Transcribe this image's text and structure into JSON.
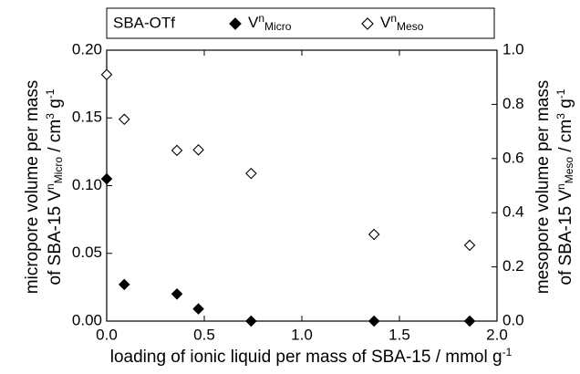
{
  "chart_data": {
    "type": "scatter",
    "legend_title": "SBA-OTf",
    "xlabel": [
      {
        "t": "loading of ionic liquid per mass of SBA-15 / mmol g"
      },
      {
        "t": "-1",
        "pos": "sup"
      }
    ],
    "ylabel": [
      [
        {
          "t": "micropore volume per mass"
        }
      ],
      [
        {
          "t": "of SBA-15  V"
        },
        {
          "t": "n",
          "pos": "sup"
        },
        {
          "t": "Micro",
          "pos": "sub"
        },
        {
          "t": "  / cm"
        },
        {
          "t": "3",
          "pos": "sup"
        },
        {
          "t": " g"
        },
        {
          "t": "-1",
          "pos": "sup"
        }
      ]
    ],
    "y2label": [
      [
        {
          "t": "mesopore volume per mass"
        }
      ],
      [
        {
          "t": "of SBA-15  V"
        },
        {
          "t": "n",
          "pos": "sup"
        },
        {
          "t": "Meso",
          "pos": "sub"
        },
        {
          "t": "  / cm"
        },
        {
          "t": "3",
          "pos": "sup"
        },
        {
          "t": " g"
        },
        {
          "t": "-1",
          "pos": "sup"
        }
      ]
    ],
    "x": [
      0,
      0.09,
      0.36,
      0.47,
      0.74,
      1.37,
      1.86
    ],
    "series": [
      {
        "name": [
          {
            "t": "V"
          },
          {
            "t": "n",
            "pos": "sup"
          },
          {
            "t": "Micro",
            "pos": "sub"
          }
        ],
        "color": "#000000",
        "filled": true,
        "axis": "y",
        "values": [
          0.105,
          0.027,
          0.02,
          0.009,
          0,
          0,
          0
        ]
      },
      {
        "name": [
          {
            "t": "V"
          },
          {
            "t": "n",
            "pos": "sup"
          },
          {
            "t": "Meso",
            "pos": "sub"
          }
        ],
        "color": "#000000",
        "filled": false,
        "axis": "y2",
        "values": [
          0.91,
          0.745,
          0.63,
          0.632,
          0.545,
          0.32,
          0.28
        ]
      }
    ],
    "xlim": [
      0,
      2
    ],
    "xticks": [
      {
        "value": 0,
        "label": "0.0"
      },
      {
        "value": 0.5,
        "label": "0.5"
      },
      {
        "value": 1,
        "label": "1.0"
      },
      {
        "value": 1.5,
        "label": "1.5"
      },
      {
        "value": 2,
        "label": "2.0"
      }
    ],
    "ylim": [
      0,
      0.2
    ],
    "yticks": [
      {
        "value": 0,
        "label": "0.00"
      },
      {
        "value": 0.05,
        "label": "0.05"
      },
      {
        "value": 0.1,
        "label": "0.10"
      },
      {
        "value": 0.15,
        "label": "0.15"
      },
      {
        "value": 0.2,
        "label": "0.20"
      }
    ],
    "y2lim": [
      0,
      1
    ],
    "y2ticks": [
      {
        "value": 0,
        "label": "0.0"
      },
      {
        "value": 0.2,
        "label": "0.2"
      },
      {
        "value": 0.4,
        "label": "0.4"
      },
      {
        "value": 0.6,
        "label": "0.6"
      },
      {
        "value": 0.8,
        "label": "0.8"
      },
      {
        "value": 1,
        "label": "1.0"
      }
    ],
    "grid": false
  }
}
